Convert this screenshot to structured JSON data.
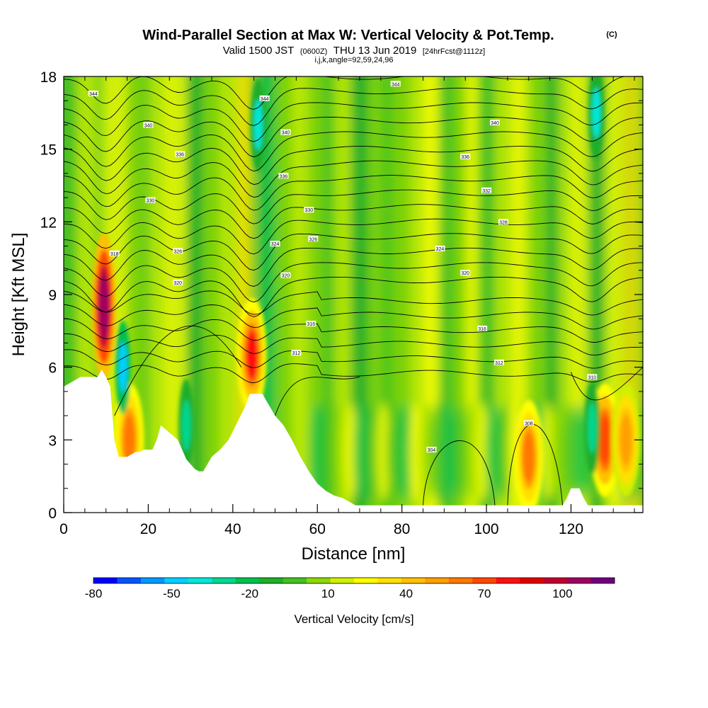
{
  "title": {
    "main": "Wind-Parallel Section at Max W: Vertical Velocity & Pot.Temp.",
    "copyright": "(C)",
    "valid_prefix": "Valid 1500 JST",
    "valid_zulu": "(0600Z)",
    "valid_date": "THU 13 Jun 2019",
    "forecast": "[24hrFcst@1112z]",
    "ijk": "i,j,k,angle=92,59,24,96"
  },
  "chart_data": {
    "type": "heatmap",
    "xlabel": "Distance [nm]",
    "ylabel": "Height [Kft MSL]",
    "xlim": [
      0,
      137
    ],
    "ylim": [
      0,
      18
    ],
    "x_ticks": [
      "0",
      "20",
      "40",
      "60",
      "80",
      "100",
      "120"
    ],
    "x_tick_values": [
      0,
      20,
      40,
      60,
      80,
      100,
      120
    ],
    "y_ticks": [
      "0",
      "3",
      "6",
      "9",
      "12",
      "15",
      "18"
    ],
    "y_tick_values": [
      0,
      3,
      6,
      9,
      12,
      15,
      18
    ],
    "colorbar": {
      "label": "Vertical Velocity [cm/s]",
      "tick_labels": [
        "-80",
        "-50",
        "-20",
        "10",
        "40",
        "70",
        "100"
      ],
      "tick_values": [
        -80,
        -50,
        -20,
        10,
        40,
        70,
        100
      ],
      "bounds": [
        -80,
        120
      ],
      "colors": [
        "#0000ff",
        "#0055ff",
        "#0099ff",
        "#00d0ff",
        "#00e8d8",
        "#00d890",
        "#00c050",
        "#1eae2a",
        "#44c020",
        "#8cd800",
        "#d0f000",
        "#ffff00",
        "#ffe000",
        "#ffc000",
        "#ffa000",
        "#ff7800",
        "#ff4800",
        "#ff1010",
        "#e00000",
        "#c00030",
        "#a00060",
        "#700080"
      ]
    },
    "terrain_kft": [
      [
        0,
        5.2
      ],
      [
        2,
        5.4
      ],
      [
        4,
        5.6
      ],
      [
        8,
        5.6
      ],
      [
        9,
        5.9
      ],
      [
        10,
        5.6
      ],
      [
        11,
        5.2
      ],
      [
        12,
        3.0
      ],
      [
        13,
        2.3
      ],
      [
        15,
        2.3
      ],
      [
        17,
        2.5
      ],
      [
        18,
        2.5
      ],
      [
        19,
        2.6
      ],
      [
        21,
        2.6
      ],
      [
        22,
        3.0
      ],
      [
        23,
        3.6
      ],
      [
        25,
        3.3
      ],
      [
        27,
        3.0
      ],
      [
        29,
        2.2
      ],
      [
        30,
        2.0
      ],
      [
        31,
        1.8
      ],
      [
        32,
        1.7
      ],
      [
        33,
        1.7
      ],
      [
        34,
        2.0
      ],
      [
        35,
        2.3
      ],
      [
        37,
        2.6
      ],
      [
        39,
        3.0
      ],
      [
        41,
        3.7
      ],
      [
        43,
        4.4
      ],
      [
        44,
        4.9
      ],
      [
        47,
        4.9
      ],
      [
        48,
        4.6
      ],
      [
        50,
        4.0
      ],
      [
        52,
        3.6
      ],
      [
        54,
        3.0
      ],
      [
        56,
        2.3
      ],
      [
        58,
        1.7
      ],
      [
        60,
        1.2
      ],
      [
        62,
        0.9
      ],
      [
        64,
        0.7
      ],
      [
        66,
        0.6
      ],
      [
        68,
        0.4
      ],
      [
        69,
        0.3
      ],
      [
        80,
        0.3
      ],
      [
        90,
        0.3
      ],
      [
        100,
        0.3
      ],
      [
        110,
        0.3
      ],
      [
        118,
        0.3
      ],
      [
        119,
        0.6
      ],
      [
        120,
        1.0
      ],
      [
        122,
        1.0
      ],
      [
        123,
        0.6
      ],
      [
        124,
        0.3
      ],
      [
        130,
        0.3
      ],
      [
        137,
        0.3
      ]
    ],
    "updraft_cores": [
      {
        "x": 9.5,
        "z": 8.5,
        "w": 110
      },
      {
        "x": 44.5,
        "z": 6.5,
        "w": 75
      },
      {
        "x": 15.5,
        "z": 3.0,
        "w": 60
      },
      {
        "x": 110,
        "z": 2.3,
        "w": 60
      },
      {
        "x": 128,
        "z": 3.0,
        "w": 70
      },
      {
        "x": 133,
        "z": 3.0,
        "w": 55
      }
    ],
    "downdraft_cores": [
      {
        "x": 14,
        "z": 6.0,
        "w": -45
      },
      {
        "x": 46,
        "z": 16.0,
        "w": -40
      },
      {
        "x": 29,
        "z": 3.6,
        "w": -30
      },
      {
        "x": 125,
        "z": 3.5,
        "w": -30
      },
      {
        "x": 126,
        "z": 16.5,
        "w": -35
      }
    ],
    "theta_contour_labels": [
      {
        "text": "344",
        "x": 7,
        "z": 17.3
      },
      {
        "text": "340",
        "x": 20,
        "z": 16.0
      },
      {
        "text": "336",
        "x": 27.5,
        "z": 14.8
      },
      {
        "text": "330",
        "x": 20.5,
        "z": 12.9
      },
      {
        "text": "326",
        "x": 27,
        "z": 10.8
      },
      {
        "text": "320",
        "x": 27,
        "z": 9.5
      },
      {
        "text": "318",
        "x": 12,
        "z": 10.7
      },
      {
        "text": "344",
        "x": 47.5,
        "z": 17.1
      },
      {
        "text": "340",
        "x": 52.5,
        "z": 15.7
      },
      {
        "text": "336",
        "x": 52,
        "z": 13.9
      },
      {
        "text": "330",
        "x": 58,
        "z": 12.5
      },
      {
        "text": "326",
        "x": 59,
        "z": 11.3
      },
      {
        "text": "324",
        "x": 50,
        "z": 11.1
      },
      {
        "text": "320",
        "x": 52.5,
        "z": 9.8
      },
      {
        "text": "316",
        "x": 58.5,
        "z": 7.8
      },
      {
        "text": "312",
        "x": 55,
        "z": 6.6
      },
      {
        "text": "344",
        "x": 78.5,
        "z": 17.7
      },
      {
        "text": "340",
        "x": 102,
        "z": 16.1
      },
      {
        "text": "336",
        "x": 95,
        "z": 14.7
      },
      {
        "text": "332",
        "x": 100,
        "z": 13.3
      },
      {
        "text": "328",
        "x": 104,
        "z": 12.0
      },
      {
        "text": "324",
        "x": 89,
        "z": 10.9
      },
      {
        "text": "320",
        "x": 95,
        "z": 9.9
      },
      {
        "text": "316",
        "x": 99,
        "z": 7.6
      },
      {
        "text": "312",
        "x": 103,
        "z": 6.2
      },
      {
        "text": "308",
        "x": 110,
        "z": 3.7
      },
      {
        "text": "304",
        "x": 87,
        "z": 2.6
      },
      {
        "text": "310",
        "x": 125,
        "z": 5.6
      }
    ]
  }
}
